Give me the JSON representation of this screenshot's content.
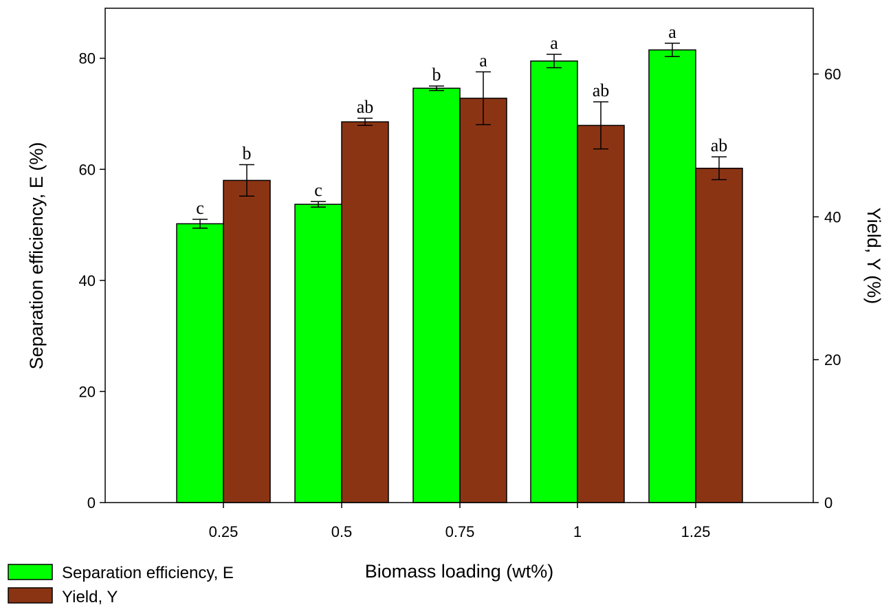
{
  "chart_data": {
    "type": "bar",
    "title": "",
    "xlabel": "Biomass loading (wt%)",
    "categories": [
      "0.25",
      "0.5",
      "0.75",
      "1",
      "1.25"
    ],
    "ylabel_left": "Separation efficiency, E (%)",
    "ylabel_right": "Yield, Y (%)",
    "ylim_left": [
      0,
      89
    ],
    "ylim_right": [
      0,
      69.2
    ],
    "yticks_left": [
      0,
      20,
      40,
      60,
      80
    ],
    "yticks_right": [
      0,
      20,
      40,
      60
    ],
    "series": [
      {
        "name": "Separation efficiency, E",
        "axis": "left",
        "color": "#00ff00",
        "values": [
          50.2,
          53.7,
          74.6,
          79.5,
          81.5
        ],
        "errors": [
          0.8,
          0.5,
          0.4,
          1.2,
          1.2
        ],
        "labels": [
          "c",
          "c",
          "b",
          "a",
          "a"
        ]
      },
      {
        "name": "Yield, Y",
        "axis": "right",
        "color": "#8b3414",
        "values": [
          45.1,
          53.3,
          56.6,
          52.8,
          46.8
        ],
        "errors": [
          2.2,
          0.5,
          3.7,
          3.3,
          1.6
        ],
        "labels": [
          "b",
          "ab",
          "a",
          "ab",
          "ab"
        ]
      }
    ],
    "legend": {
      "position": "bottom-left",
      "entries": [
        "Separation efficiency, E",
        "Yield, Y"
      ]
    }
  }
}
